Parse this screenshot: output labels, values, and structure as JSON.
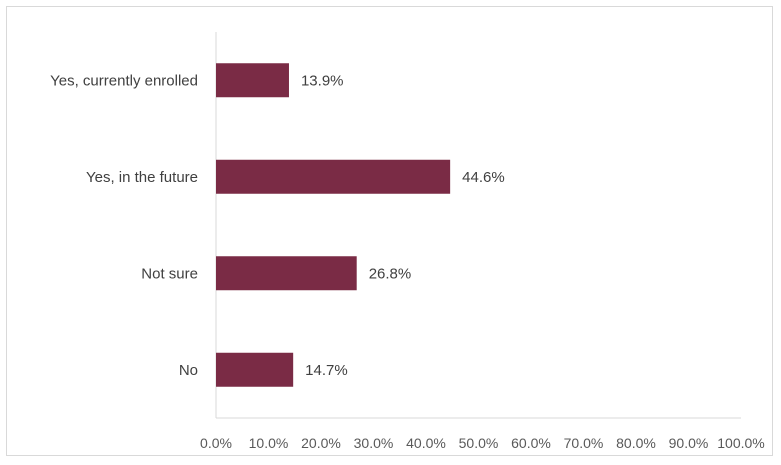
{
  "chart_data": {
    "type": "bar",
    "orientation": "horizontal",
    "categories": [
      "Yes, currently enrolled",
      "Yes, in the future",
      "Not sure",
      "No"
    ],
    "values": [
      13.9,
      44.6,
      26.8,
      14.7
    ],
    "value_labels": [
      "13.9%",
      "44.6%",
      "26.8%",
      "14.7%"
    ],
    "xlim": [
      0,
      100
    ],
    "x_ticks": [
      "0.0%",
      "10.0%",
      "20.0%",
      "30.0%",
      "40.0%",
      "50.0%",
      "60.0%",
      "70.0%",
      "80.0%",
      "90.0%",
      "100.0%"
    ],
    "grid": false,
    "legend": "none",
    "bar_color": "#7a2b45"
  }
}
